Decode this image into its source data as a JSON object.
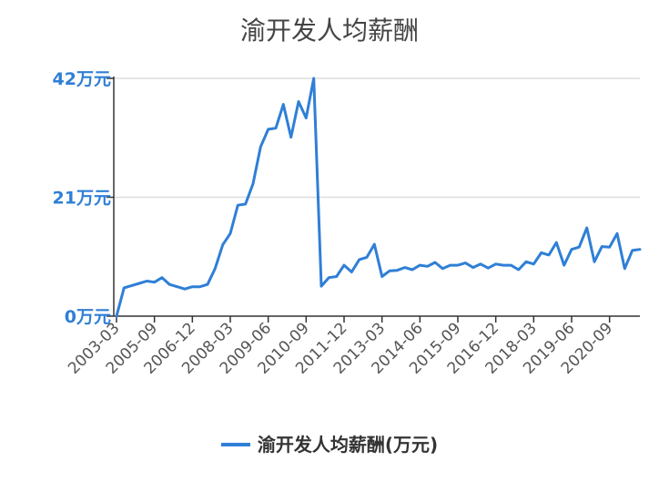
{
  "chart_data": {
    "type": "line",
    "title": "渝开发人均薪酬",
    "xlabel": "",
    "ylabel": "",
    "ylim": [
      0,
      42
    ],
    "y_ticks": [
      "0万元",
      "21万元",
      "42万元"
    ],
    "y_tick_values": [
      0,
      21,
      42
    ],
    "x_tick_labels": [
      "2003-03",
      "2005-09",
      "2006-12",
      "2008-03",
      "2009-06",
      "2010-09",
      "2011-12",
      "2013-03",
      "2014-06",
      "2015-09",
      "2016-12",
      "2018-03",
      "2019-06",
      "2020-09"
    ],
    "grid": true,
    "legend_position": "bottom",
    "line_color": "#2f7fd6",
    "series": [
      {
        "name": "渝开发人均薪酬(万元)",
        "values": [
          0,
          5,
          5.4,
          5.8,
          6.2,
          6.0,
          6.8,
          5.6,
          5.2,
          4.8,
          5.2,
          5.2,
          5.6,
          8.4,
          12.6,
          14.6,
          19.6,
          19.8,
          23.4,
          29.9,
          33.0,
          33.2,
          37.4,
          31.6,
          37.9,
          35.0,
          42.0,
          5.3,
          6.8,
          7.0,
          9.0,
          7.8,
          10.0,
          10.4,
          12.7,
          7.0,
          8.0,
          8.1,
          8.6,
          8.2,
          9.0,
          8.8,
          9.5,
          8.4,
          9.0,
          9.0,
          9.4,
          8.6,
          9.2,
          8.5,
          9.2,
          9.0,
          9.0,
          8.2,
          9.6,
          9.2,
          11.2,
          10.8,
          13.0,
          9.0,
          11.8,
          12.2,
          15.6,
          9.6,
          12.3,
          12.2,
          14.6,
          8.4,
          11.6,
          11.8
        ]
      }
    ]
  }
}
